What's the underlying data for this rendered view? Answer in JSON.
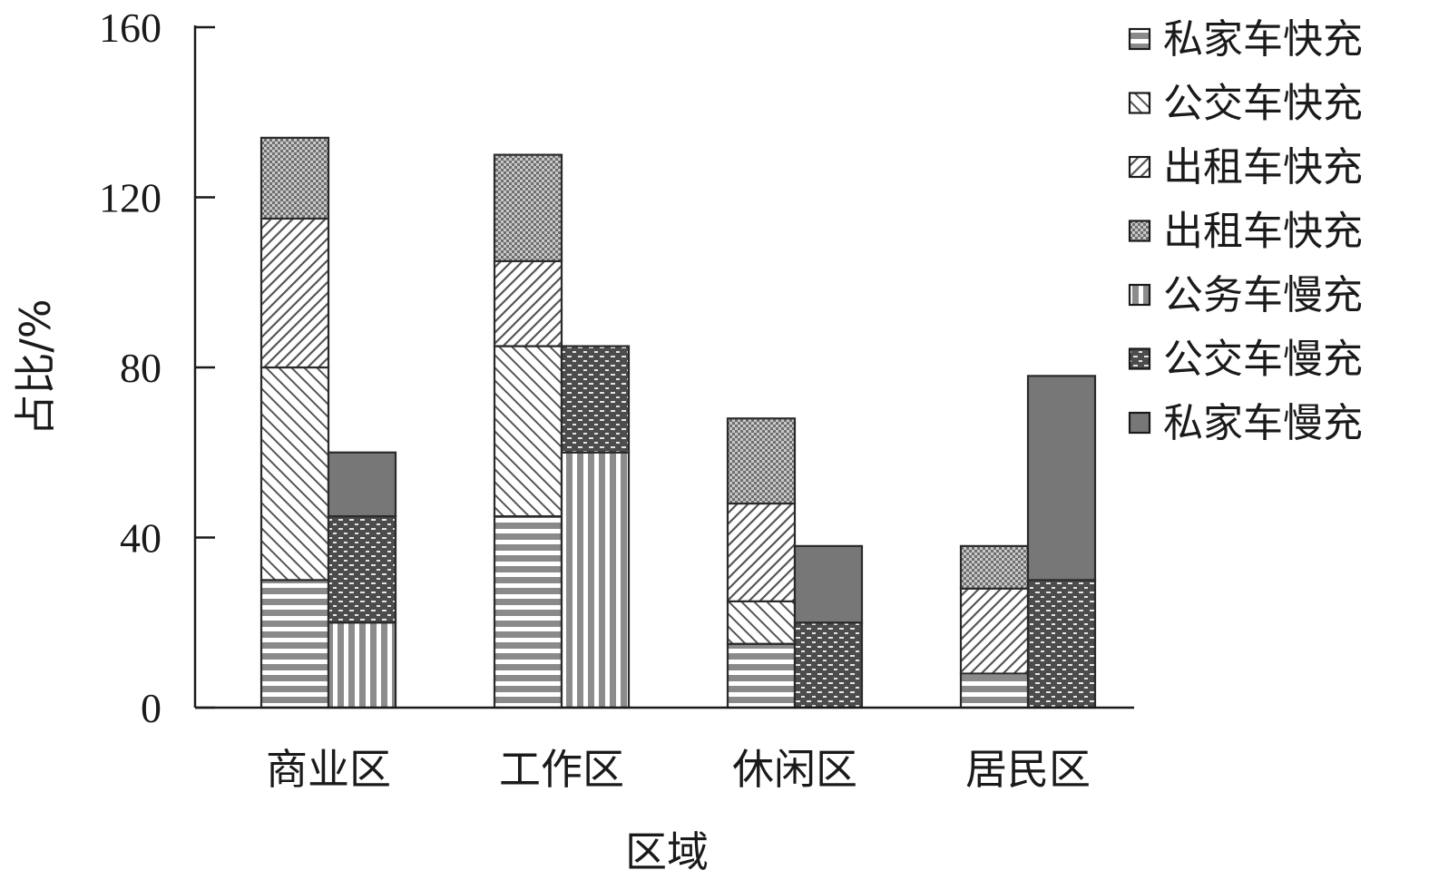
{
  "chart_data": {
    "type": "bar",
    "subtype": "grouped-stacked",
    "xlabel": "区域",
    "ylabel": "占比/%",
    "ylim": [
      0,
      160
    ],
    "yticks": [
      0,
      40,
      80,
      120,
      160
    ],
    "grid": false,
    "legend_position": "right",
    "categories": [
      "商业区",
      "工作区",
      "休闲区",
      "居民区"
    ],
    "series": [
      {
        "name": "私家车快充",
        "stack": "fast",
        "pattern": "horizontal-lines",
        "values": [
          30,
          45,
          15,
          8
        ]
      },
      {
        "name": "公交车快充",
        "stack": "fast",
        "pattern": "back-diagonal",
        "values": [
          50,
          40,
          10,
          0
        ]
      },
      {
        "name": "出租车快充",
        "stack": "fast",
        "pattern": "forward-diagonal",
        "values": [
          35,
          20,
          23,
          20
        ]
      },
      {
        "name": "出租车快充",
        "stack": "fast",
        "pattern": "checker",
        "values": [
          19,
          25,
          20,
          10
        ]
      },
      {
        "name": "公务车慢充",
        "stack": "slow",
        "pattern": "vertical-lines",
        "values": [
          20,
          60,
          0,
          0
        ]
      },
      {
        "name": "公交车慢充",
        "stack": "slow",
        "pattern": "dotted-dark",
        "values": [
          25,
          25,
          20,
          30
        ]
      },
      {
        "name": "私家车慢充",
        "stack": "slow",
        "pattern": "solid-dark",
        "values": [
          15,
          0,
          18,
          48
        ]
      }
    ]
  }
}
